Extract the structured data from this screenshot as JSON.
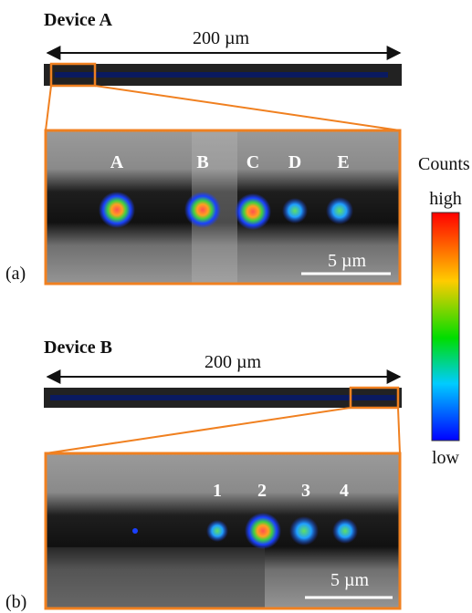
{
  "device_a": {
    "title": "Device A",
    "length_label": "200 µm",
    "spot_labels": [
      "A",
      "B",
      "C",
      "D",
      "E"
    ],
    "scale_label": "5 µm",
    "panel_label": "(a)"
  },
  "colorbar": {
    "title": "Counts",
    "high": "high",
    "low": "low"
  },
  "device_b": {
    "title": "Device B",
    "length_label": "200 µm",
    "spot_labels": [
      "1",
      "2",
      "3",
      "4"
    ],
    "scale_label": "5 µm",
    "panel_label": "(b)"
  }
}
